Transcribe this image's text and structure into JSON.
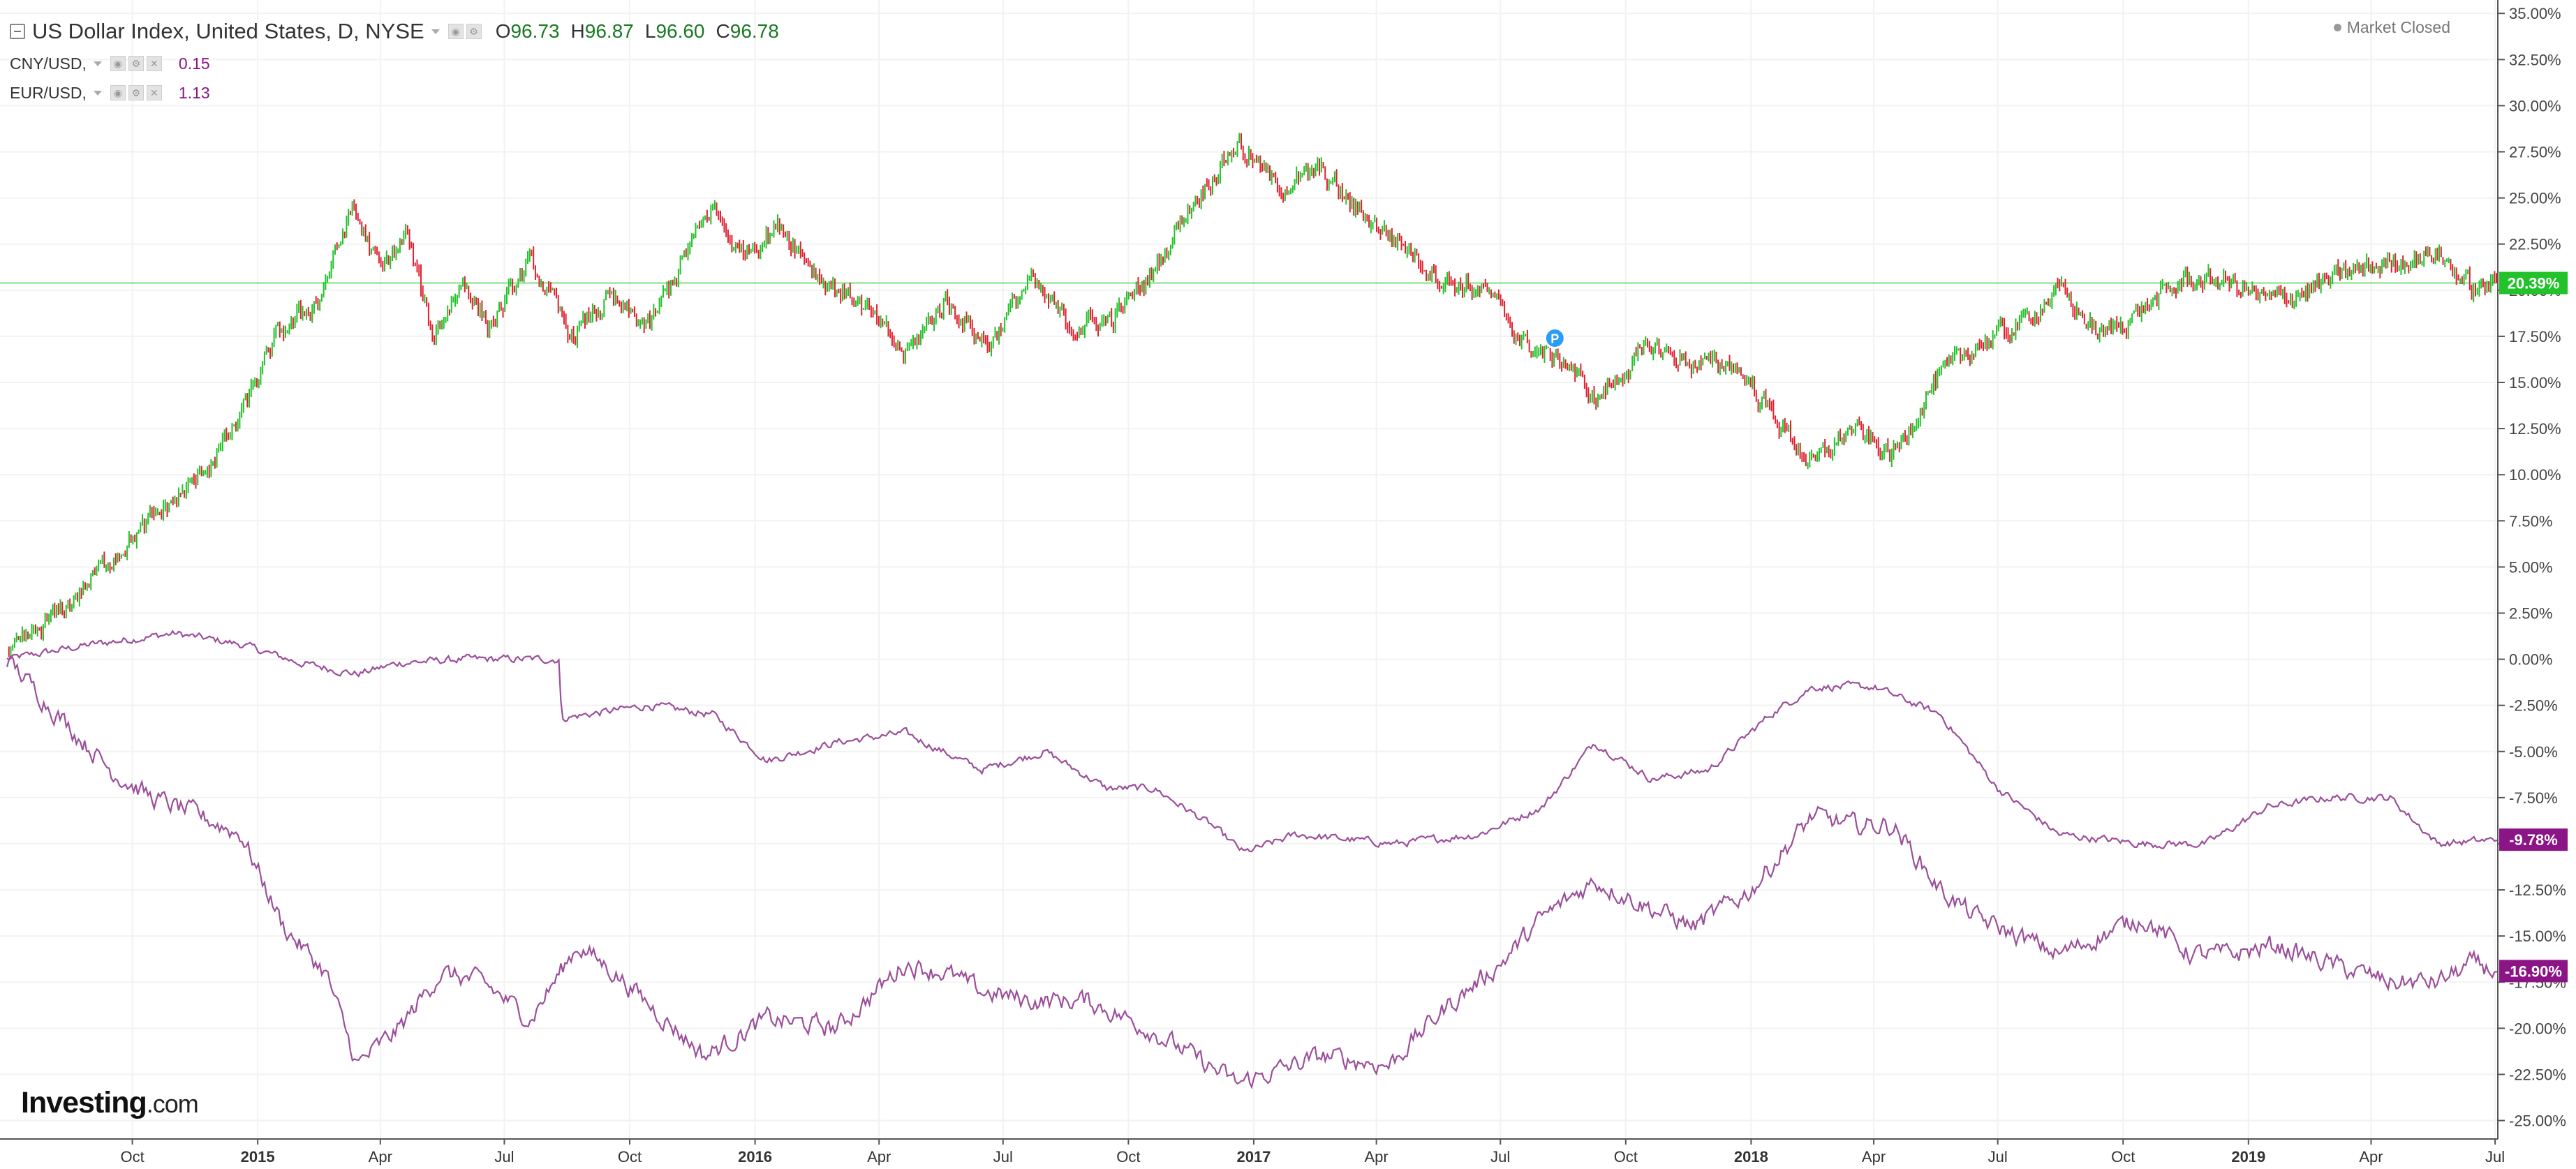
{
  "header": {
    "main": {
      "title": "US Dollar Index, United States, D, NYSE",
      "open_label": "O",
      "open": "96.73",
      "high_label": "H",
      "high": "96.87",
      "low_label": "L",
      "low": "96.60",
      "close_label": "C",
      "close": "96.78"
    },
    "cny": {
      "title": "CNY/USD,",
      "value": "0.15"
    },
    "eur": {
      "title": "EUR/USD,",
      "value": "1.13"
    },
    "market_status": "Market Closed"
  },
  "logo": {
    "brand": "Investing",
    "suffix": ".com"
  },
  "marker": {
    "label": "P",
    "date": "2017-08-10",
    "value": 17.4
  },
  "colors": {
    "up": "#22c22a",
    "down": "#e0202f",
    "purple": "#9b4f9a",
    "badge_green": "#22c22a",
    "badge_purple": "#8b1487",
    "marker": "#2a9df4",
    "level_line": "#7fe07f",
    "grid": "#f2f2f2"
  },
  "chart_data": {
    "type": "line",
    "x_range": [
      "2014-07-01",
      "2019-07-03"
    ],
    "ylim": [
      -26,
      35.5
    ],
    "y_unit": "%",
    "grid": true,
    "y_ticks": [
      "35.00%",
      "32.50%",
      "30.00%",
      "27.50%",
      "25.00%",
      "22.50%",
      "20.00%",
      "17.50%",
      "15.00%",
      "12.50%",
      "10.00%",
      "7.50%",
      "5.00%",
      "2.50%",
      "0.00%",
      "-2.50%",
      "-5.00%",
      "-7.50%",
      "-10.00%",
      "-12.50%",
      "-15.00%",
      "-17.50%",
      "-20.00%",
      "-22.50%",
      "-25.00%"
    ],
    "x_ticks": [
      {
        "date": "2014-10-01",
        "label": "Oct",
        "bold": false
      },
      {
        "date": "2015-01-01",
        "label": "2015",
        "bold": true
      },
      {
        "date": "2015-04-01",
        "label": "Apr",
        "bold": false
      },
      {
        "date": "2015-07-01",
        "label": "Jul",
        "bold": false
      },
      {
        "date": "2015-10-01",
        "label": "Oct",
        "bold": false
      },
      {
        "date": "2016-01-01",
        "label": "2016",
        "bold": true
      },
      {
        "date": "2016-04-01",
        "label": "Apr",
        "bold": false
      },
      {
        "date": "2016-07-01",
        "label": "Jul",
        "bold": false
      },
      {
        "date": "2016-10-01",
        "label": "Oct",
        "bold": false
      },
      {
        "date": "2017-01-01",
        "label": "2017",
        "bold": true
      },
      {
        "date": "2017-04-01",
        "label": "Apr",
        "bold": false
      },
      {
        "date": "2017-07-01",
        "label": "Jul",
        "bold": false
      },
      {
        "date": "2017-10-01",
        "label": "Oct",
        "bold": false
      },
      {
        "date": "2018-01-01",
        "label": "2018",
        "bold": true
      },
      {
        "date": "2018-04-01",
        "label": "Apr",
        "bold": false
      },
      {
        "date": "2018-07-01",
        "label": "Jul",
        "bold": false
      },
      {
        "date": "2018-10-01",
        "label": "Oct",
        "bold": false
      },
      {
        "date": "2019-01-01",
        "label": "2019",
        "bold": true
      },
      {
        "date": "2019-04-01",
        "label": "Apr",
        "bold": false
      },
      {
        "date": "2019-07-01",
        "label": "Jul",
        "bold": false
      }
    ],
    "series": [
      {
        "name": "US Dollar Index",
        "style": "candles",
        "last_label": "20.39%",
        "last": 20.39,
        "points": [
          [
            "2014-07-01",
            0.0
          ],
          [
            "2014-08-15",
            3.0
          ],
          [
            "2014-09-15",
            5.5
          ],
          [
            "2014-10-15",
            7.5
          ],
          [
            "2014-11-15",
            9.5
          ],
          [
            "2014-12-15",
            12.5
          ],
          [
            "2015-01-15",
            17.5
          ],
          [
            "2015-02-15",
            19.5
          ],
          [
            "2015-03-12",
            24.5
          ],
          [
            "2015-04-01",
            21.0
          ],
          [
            "2015-04-20",
            23.0
          ],
          [
            "2015-05-10",
            17.5
          ],
          [
            "2015-06-01",
            20.5
          ],
          [
            "2015-06-20",
            18.0
          ],
          [
            "2015-07-20",
            21.5
          ],
          [
            "2015-08-20",
            17.5
          ],
          [
            "2015-09-15",
            19.5
          ],
          [
            "2015-10-15",
            18.0
          ],
          [
            "2015-11-15",
            22.5
          ],
          [
            "2015-12-01",
            24.5
          ],
          [
            "2015-12-20",
            22.0
          ],
          [
            "2016-01-20",
            23.5
          ],
          [
            "2016-02-20",
            20.5
          ],
          [
            "2016-03-15",
            19.5
          ],
          [
            "2016-04-20",
            16.5
          ],
          [
            "2016-05-20",
            19.5
          ],
          [
            "2016-06-20",
            17.0
          ],
          [
            "2016-07-20",
            20.5
          ],
          [
            "2016-08-20",
            18.0
          ],
          [
            "2016-09-20",
            18.5
          ],
          [
            "2016-10-20",
            21.0
          ],
          [
            "2016-11-10",
            24.0
          ],
          [
            "2016-12-20",
            28.0
          ],
          [
            "2017-01-20",
            25.5
          ],
          [
            "2017-02-20",
            26.5
          ],
          [
            "2017-03-15",
            24.5
          ],
          [
            "2017-04-20",
            22.5
          ],
          [
            "2017-05-20",
            20.5
          ],
          [
            "2017-06-20",
            20.0
          ],
          [
            "2017-07-20",
            17.0
          ],
          [
            "2017-08-20",
            16.0
          ],
          [
            "2017-09-08",
            14.0
          ],
          [
            "2017-10-20",
            17.0
          ],
          [
            "2017-11-20",
            16.0
          ],
          [
            "2017-12-20",
            16.0
          ],
          [
            "2018-01-20",
            13.0
          ],
          [
            "2018-02-15",
            10.5
          ],
          [
            "2018-03-15",
            12.5
          ],
          [
            "2018-04-15",
            11.0
          ],
          [
            "2018-05-15",
            15.0
          ],
          [
            "2018-06-15",
            17.0
          ],
          [
            "2018-07-15",
            18.0
          ],
          [
            "2018-08-15",
            20.0
          ],
          [
            "2018-09-15",
            17.5
          ],
          [
            "2018-10-15",
            19.0
          ],
          [
            "2018-11-15",
            20.5
          ],
          [
            "2018-12-15",
            20.5
          ],
          [
            "2019-01-15",
            19.5
          ],
          [
            "2019-02-15",
            20.0
          ],
          [
            "2019-03-15",
            21.0
          ],
          [
            "2019-04-15",
            21.5
          ],
          [
            "2019-05-20",
            22.0
          ],
          [
            "2019-06-15",
            20.0
          ],
          [
            "2019-07-02",
            20.39
          ]
        ]
      },
      {
        "name": "CNY/USD",
        "style": "line",
        "last_label": "-9.78%",
        "last": -9.78,
        "points": [
          [
            "2014-07-01",
            0.0
          ],
          [
            "2014-09-01",
            0.8
          ],
          [
            "2014-11-01",
            1.4
          ],
          [
            "2014-12-20",
            0.8
          ],
          [
            "2015-02-01",
            -0.2
          ],
          [
            "2015-03-15",
            -0.8
          ],
          [
            "2015-04-15",
            -0.2
          ],
          [
            "2015-06-01",
            0.0
          ],
          [
            "2015-08-10",
            0.0
          ],
          [
            "2015-08-12",
            -3.2
          ],
          [
            "2015-10-15",
            -2.5
          ],
          [
            "2015-12-01",
            -3.0
          ],
          [
            "2016-01-10",
            -5.5
          ],
          [
            "2016-03-01",
            -4.5
          ],
          [
            "2016-04-20",
            -4.0
          ],
          [
            "2016-06-15",
            -6.0
          ],
          [
            "2016-08-01",
            -5.0
          ],
          [
            "2016-09-15",
            -7.0
          ],
          [
            "2016-10-20",
            -7.0
          ],
          [
            "2016-12-01",
            -9.0
          ],
          [
            "2016-12-25",
            -10.5
          ],
          [
            "2017-02-01",
            -9.5
          ],
          [
            "2017-04-15",
            -10.0
          ],
          [
            "2017-06-15",
            -9.5
          ],
          [
            "2017-08-01",
            -8.0
          ],
          [
            "2017-09-08",
            -4.5
          ],
          [
            "2017-10-20",
            -6.5
          ],
          [
            "2017-12-01",
            -6.0
          ],
          [
            "2018-01-15",
            -3.0
          ],
          [
            "2018-02-15",
            -1.5
          ],
          [
            "2018-04-01",
            -1.5
          ],
          [
            "2018-05-20",
            -3.0
          ],
          [
            "2018-07-01",
            -7.0
          ],
          [
            "2018-08-15",
            -9.5
          ],
          [
            "2018-10-15",
            -10.0
          ],
          [
            "2018-12-01",
            -10.0
          ],
          [
            "2019-01-15",
            -8.0
          ],
          [
            "2019-03-01",
            -7.5
          ],
          [
            "2019-04-15",
            -7.5
          ],
          [
            "2019-05-20",
            -10.0
          ],
          [
            "2019-07-02",
            -9.78
          ]
        ]
      },
      {
        "name": "EUR/USD",
        "style": "line",
        "last_label": "-16.90%",
        "last": -16.9,
        "points": [
          [
            "2014-07-01",
            0.0
          ],
          [
            "2014-08-01",
            -2.5
          ],
          [
            "2014-09-15",
            -6.0
          ],
          [
            "2014-10-15",
            -7.5
          ],
          [
            "2014-11-20",
            -8.5
          ],
          [
            "2014-12-20",
            -9.5
          ],
          [
            "2015-01-20",
            -14.5
          ],
          [
            "2015-02-20",
            -17.0
          ],
          [
            "2015-03-15",
            -22.0
          ],
          [
            "2015-04-15",
            -20.0
          ],
          [
            "2015-05-15",
            -17.0
          ],
          [
            "2015-06-15",
            -17.5
          ],
          [
            "2015-07-20",
            -19.5
          ],
          [
            "2015-08-24",
            -15.5
          ],
          [
            "2015-09-20",
            -17.0
          ],
          [
            "2015-11-25",
            -21.5
          ],
          [
            "2016-01-10",
            -19.5
          ],
          [
            "2016-03-01",
            -20.0
          ],
          [
            "2016-04-20",
            -16.5
          ],
          [
            "2016-05-20",
            -17.0
          ],
          [
            "2016-06-15",
            -18.0
          ],
          [
            "2016-07-20",
            -18.5
          ],
          [
            "2016-09-01",
            -18.5
          ],
          [
            "2016-10-15",
            -20.0
          ],
          [
            "2016-12-20",
            -23.0
          ],
          [
            "2017-02-20",
            -21.5
          ],
          [
            "2017-04-10",
            -22.0
          ],
          [
            "2017-05-20",
            -19.0
          ],
          [
            "2017-07-01",
            -16.5
          ],
          [
            "2017-08-01",
            -14.0
          ],
          [
            "2017-09-08",
            -12.0
          ],
          [
            "2017-10-20",
            -13.5
          ],
          [
            "2017-11-20",
            -14.5
          ],
          [
            "2018-01-01",
            -12.5
          ],
          [
            "2018-02-15",
            -8.5
          ],
          [
            "2018-03-15",
            -9.0
          ],
          [
            "2018-04-15",
            -9.0
          ],
          [
            "2018-05-20",
            -12.5
          ],
          [
            "2018-06-15",
            -14.0
          ],
          [
            "2018-08-15",
            -16.0
          ],
          [
            "2018-10-15",
            -14.0
          ],
          [
            "2018-11-20",
            -16.0
          ],
          [
            "2018-12-20",
            -16.0
          ],
          [
            "2019-01-20",
            -15.5
          ],
          [
            "2019-03-01",
            -16.5
          ],
          [
            "2019-04-15",
            -17.5
          ],
          [
            "2019-05-20",
            -17.5
          ],
          [
            "2019-06-15",
            -16.5
          ],
          [
            "2019-07-02",
            -16.9
          ]
        ]
      }
    ]
  }
}
